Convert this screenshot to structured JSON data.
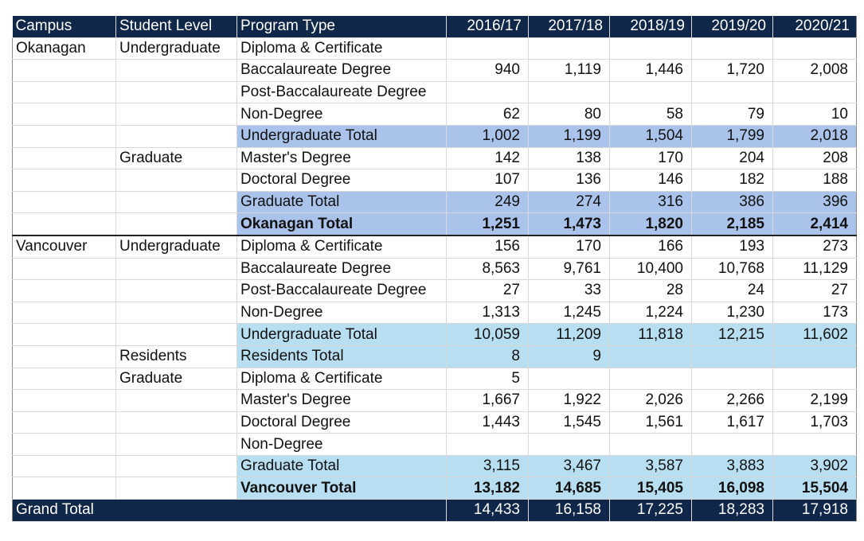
{
  "table": {
    "headers": [
      "Campus",
      "Student Level",
      "Program Type",
      "2016/17",
      "2017/18",
      "2018/19",
      "2019/20",
      "2020/21"
    ],
    "rows": [
      {
        "campus": "Okanagan",
        "level": "Undergraduate",
        "program": "Diploma & Certificate",
        "values": [
          "",
          "",
          "",
          "",
          ""
        ],
        "style": ""
      },
      {
        "campus": "",
        "level": "",
        "program": "Baccalaureate Degree",
        "values": [
          "940",
          "1,119",
          "1,446",
          "1,720",
          "2,008"
        ],
        "style": ""
      },
      {
        "campus": "",
        "level": "",
        "program": "Post-Baccalaureate Degree",
        "values": [
          "",
          "",
          "",
          "",
          ""
        ],
        "style": ""
      },
      {
        "campus": "",
        "level": "",
        "program": "Non-Degree",
        "values": [
          "62",
          "80",
          "58",
          "79",
          "10"
        ],
        "style": ""
      },
      {
        "campus": "",
        "level": "",
        "program": "Undergraduate Total",
        "values": [
          "1,002",
          "1,199",
          "1,504",
          "1,799",
          "2,018"
        ],
        "style": "blue sub-line"
      },
      {
        "campus": "",
        "level": "Graduate",
        "program": "Master's Degree",
        "values": [
          "142",
          "138",
          "170",
          "204",
          "208"
        ],
        "style": ""
      },
      {
        "campus": "",
        "level": "",
        "program": "Doctoral Degree",
        "values": [
          "107",
          "136",
          "146",
          "182",
          "188"
        ],
        "style": ""
      },
      {
        "campus": "",
        "level": "",
        "program": "Graduate Total",
        "values": [
          "249",
          "274",
          "316",
          "386",
          "396"
        ],
        "style": "blue sub-line"
      },
      {
        "campus": "",
        "level": "",
        "program": "Okanagan Total",
        "values": [
          "1,251",
          "1,473",
          "1,820",
          "2,185",
          "2,414"
        ],
        "style": "blue campus-total sub-line bottom-line"
      },
      {
        "campus": "Vancouver",
        "level": "Undergraduate",
        "program": "Diploma & Certificate",
        "values": [
          "156",
          "170",
          "166",
          "193",
          "273"
        ],
        "style": "top-line"
      },
      {
        "campus": "",
        "level": "",
        "program": "Baccalaureate Degree",
        "values": [
          "8,563",
          "9,761",
          "10,400",
          "10,768",
          "11,129"
        ],
        "style": ""
      },
      {
        "campus": "",
        "level": "",
        "program": "Post-Baccalaureate Degree",
        "values": [
          "27",
          "33",
          "28",
          "24",
          "27"
        ],
        "style": ""
      },
      {
        "campus": "",
        "level": "",
        "program": "Non-Degree",
        "values": [
          "1,313",
          "1,245",
          "1,224",
          "1,230",
          "173"
        ],
        "style": ""
      },
      {
        "campus": "",
        "level": "",
        "program": "Undergraduate Total",
        "values": [
          "10,059",
          "11,209",
          "11,818",
          "12,215",
          "11,602"
        ],
        "style": "light sub-line"
      },
      {
        "campus": "",
        "level": "Residents",
        "program": "Residents Total",
        "values": [
          "8",
          "9",
          "",
          "",
          ""
        ],
        "style": "light"
      },
      {
        "campus": "",
        "level": "Graduate",
        "program": "Diploma & Certificate",
        "values": [
          "5",
          "",
          "",
          "",
          ""
        ],
        "style": ""
      },
      {
        "campus": "",
        "level": "",
        "program": "Master's Degree",
        "values": [
          "1,667",
          "1,922",
          "2,026",
          "2,266",
          "2,199"
        ],
        "style": ""
      },
      {
        "campus": "",
        "level": "",
        "program": "Doctoral Degree",
        "values": [
          "1,443",
          "1,545",
          "1,561",
          "1,617",
          "1,703"
        ],
        "style": ""
      },
      {
        "campus": "",
        "level": "",
        "program": "Non-Degree",
        "values": [
          "",
          "",
          "",
          "",
          ""
        ],
        "style": ""
      },
      {
        "campus": "",
        "level": "",
        "program": "Graduate Total",
        "values": [
          "3,115",
          "3,467",
          "3,587",
          "3,883",
          "3,902"
        ],
        "style": "light sub-line"
      },
      {
        "campus": "",
        "level": "",
        "program": "Vancouver Total",
        "values": [
          "13,182",
          "14,685",
          "15,405",
          "16,098",
          "15,504"
        ],
        "style": "light campus-total sub-line bottom-line"
      }
    ],
    "grand_total": {
      "label": "Grand Total",
      "values": [
        "14,433",
        "16,158",
        "17,225",
        "18,283",
        "17,918"
      ]
    }
  },
  "colors": {
    "header_bg": "#0f2748",
    "okanagan_total_bg": "#a9c3ea",
    "vancouver_total_bg": "#b8def2"
  }
}
